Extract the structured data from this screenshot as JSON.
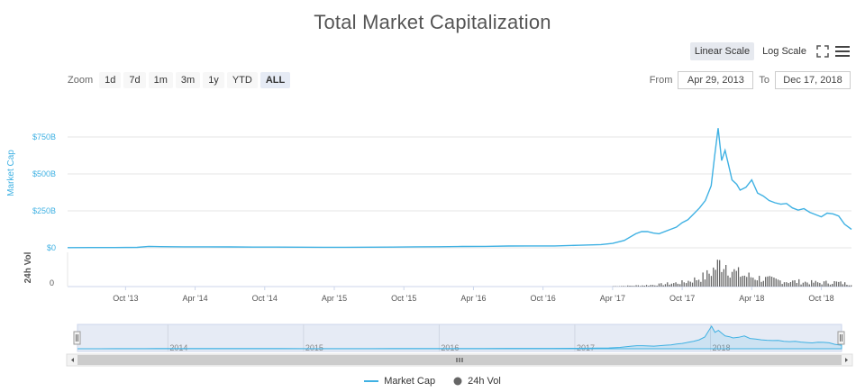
{
  "chart_data": {
    "type": "line",
    "title": "Total Market Capitalization",
    "scale_buttons": {
      "linear": "Linear Scale",
      "log": "Log Scale"
    },
    "zoom": {
      "label": "Zoom",
      "options": [
        "1d",
        "7d",
        "1m",
        "3m",
        "1y",
        "YTD",
        "ALL"
      ],
      "selected": "ALL"
    },
    "range": {
      "from_label": "From",
      "from": "Apr 29, 2013",
      "to_label": "To",
      "to": "Dec 17, 2018"
    },
    "y_axis_market_cap": {
      "label": "Market Cap",
      "ticks": [
        "$0",
        "$250B",
        "$500B",
        "$750B"
      ],
      "tick_values": [
        0,
        250,
        500,
        750
      ],
      "unit": "billion USD"
    },
    "y_axis_volume": {
      "label": "24h Vol",
      "ticks": [
        "0"
      ]
    },
    "x_ticks": [
      "Oct '13",
      "Apr '14",
      "Oct '14",
      "Apr '15",
      "Oct '15",
      "Apr '16",
      "Oct '16",
      "Apr '17",
      "Oct '17",
      "Apr '18",
      "Oct '18"
    ],
    "x_tick_months": [
      5,
      11,
      17,
      23,
      29,
      35,
      41,
      47,
      53,
      59,
      65
    ],
    "navigator_years": [
      "2014",
      "2015",
      "2016",
      "2017",
      "2018"
    ],
    "navigator_year_months": [
      8,
      20,
      32,
      44,
      56
    ],
    "x_range_months": [
      0,
      67.6
    ],
    "series": [
      {
        "name": "Market Cap",
        "color": "#3fb1e3",
        "x_months": [
          0,
          2,
          4,
          6,
          7,
          8,
          10,
          12,
          14,
          16,
          18,
          20,
          22,
          24,
          26,
          28,
          30,
          32,
          34,
          36,
          38,
          40,
          42,
          44,
          46,
          47,
          48,
          49,
          49.5,
          50,
          50.5,
          51,
          52,
          52.5,
          53,
          53.5,
          54,
          54.5,
          55,
          55.5,
          55.8,
          56.1,
          56.4,
          56.7,
          57,
          57.3,
          57.7,
          58,
          58.5,
          59,
          59.5,
          60,
          60.5,
          61,
          61.5,
          62,
          62.5,
          63,
          63.5,
          64,
          64.5,
          65,
          65.5,
          66,
          66.5,
          67,
          67.6
        ],
        "values": [
          1.5,
          1.6,
          2,
          3,
          10,
          8,
          7,
          7,
          6,
          5,
          5,
          4,
          3.5,
          3.5,
          4,
          5,
          6.5,
          7.5,
          9,
          10,
          12,
          12.5,
          13,
          17,
          22,
          30,
          50,
          95,
          110,
          110,
          100,
          95,
          125,
          140,
          170,
          190,
          230,
          270,
          320,
          420,
          620,
          810,
          590,
          660,
          560,
          460,
          430,
          390,
          410,
          460,
          370,
          350,
          320,
          305,
          295,
          300,
          270,
          255,
          265,
          240,
          225,
          210,
          235,
          230,
          215,
          160,
          125
        ]
      },
      {
        "name": "24h Vol",
        "color": "#666666",
        "x_months": [
          47,
          48,
          49,
          50,
          51,
          52,
          53,
          54,
          55,
          55.5,
          56,
          56.5,
          57,
          57.5,
          58,
          58.5,
          59,
          59.5,
          60,
          61,
          62,
          63,
          64,
          65,
          66,
          67,
          67.6
        ],
        "values": [
          1,
          2,
          3,
          4,
          6,
          9,
          12,
          20,
          30,
          45,
          60,
          75,
          55,
          40,
          35,
          30,
          28,
          25,
          22,
          18,
          15,
          14,
          12,
          11,
          13,
          9,
          7
        ]
      }
    ],
    "legend": [
      {
        "label": "Market Cap"
      },
      {
        "label": "24h Vol"
      }
    ]
  }
}
